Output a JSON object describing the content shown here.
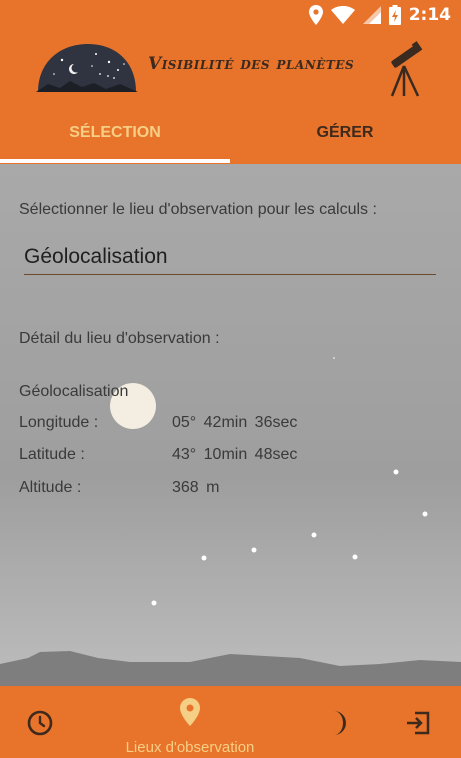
{
  "status_bar": {
    "time": "2:14",
    "icons": [
      "location-icon",
      "wifi-icon",
      "signal-icon",
      "battery-icon"
    ]
  },
  "header": {
    "title": "Visibilité des planètes",
    "logo": "night-sky-dome-logo",
    "telescope": "telescope-icon"
  },
  "tabs": [
    {
      "label": "SÉLECTION",
      "selected": true
    },
    {
      "label": "GÉRER",
      "selected": false
    }
  ],
  "main": {
    "prompt": "Sélectionner le lieu d'observation pour les calculs :",
    "selected_location": "Géolocalisation",
    "detail_title": "Détail du lieu d'observation :",
    "detail_name": "Géolocalisation",
    "rows": {
      "longitude": {
        "label": "Longitude :",
        "value": "05° 42min 36sec"
      },
      "latitude": {
        "label": "Latitude :",
        "value": "43° 10min 48sec"
      },
      "altitude": {
        "label": "Altitude :",
        "value": "368 m"
      }
    }
  },
  "bottom_nav": {
    "items": [
      {
        "icon": "clock-icon",
        "label": ""
      },
      {
        "icon": "location-pin-icon",
        "label": "Lieux d'observation",
        "selected": true
      },
      {
        "icon": "moon-icon",
        "label": ""
      },
      {
        "icon": "exit-icon",
        "label": ""
      }
    ]
  },
  "colors": {
    "primary": "#e8732a",
    "accent": "#f6cf86",
    "dark_text": "#3d2a1d"
  }
}
